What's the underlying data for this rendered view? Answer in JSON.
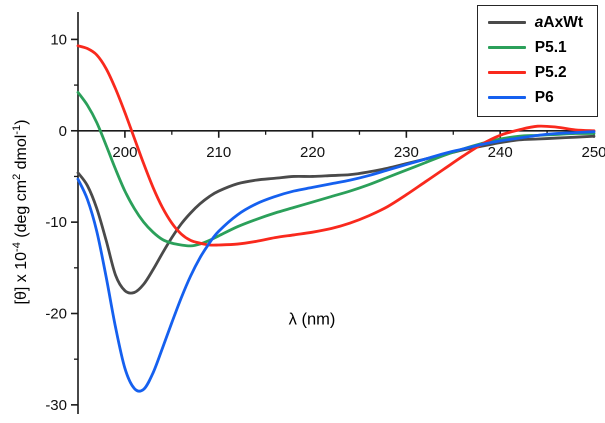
{
  "figure": {
    "ylabel_parts": [
      [
        "t",
        "[θ] x 10"
      ],
      [
        "s",
        "-4"
      ],
      [
        "t",
        " (deg cm"
      ],
      [
        "s",
        "2"
      ],
      [
        "t",
        " dmol"
      ],
      [
        "s",
        "-1"
      ],
      [
        "t",
        ")"
      ]
    ]
  },
  "chart_data": {
    "type": "line",
    "title": "",
    "xlabel": "λ (nm)",
    "ylabel": "[θ] x 10⁻⁴ (deg cm² dmol⁻¹)",
    "xlim": [
      195,
      250
    ],
    "ylim": [
      -31,
      13
    ],
    "x_ticks": [
      200,
      210,
      220,
      230,
      240,
      250
    ],
    "y_ticks": [
      10,
      0,
      -10,
      -20,
      -30
    ],
    "x_minor_ticks": [
      205,
      215,
      225,
      235,
      245
    ],
    "y_minor_ticks": [
      5,
      -5,
      -15,
      -25
    ],
    "grid": false,
    "legend_position": "top-right",
    "x": [
      195,
      196,
      197,
      198,
      199,
      200,
      201,
      202,
      203,
      204,
      205,
      206,
      207,
      208,
      209,
      210,
      212,
      214,
      216,
      218,
      220,
      222,
      224,
      226,
      228,
      230,
      232,
      234,
      236,
      238,
      240,
      242,
      244,
      246,
      248,
      250
    ],
    "series": [
      {
        "name": "aAxWt",
        "legend_prefix_italic": "a",
        "legend_label": "AxWt",
        "color": "#4a4a4a",
        "values": [
          -4.6,
          -6.0,
          -8.5,
          -12.0,
          -15.8,
          -17.5,
          -17.7,
          -16.8,
          -15.2,
          -13.4,
          -11.7,
          -10.2,
          -9.0,
          -8.0,
          -7.2,
          -6.6,
          -5.8,
          -5.4,
          -5.2,
          -5.0,
          -5.0,
          -4.9,
          -4.8,
          -4.5,
          -4.1,
          -3.6,
          -3.1,
          -2.6,
          -2.1,
          -1.7,
          -1.3,
          -1.0,
          -0.9,
          -0.8,
          -0.7,
          -0.6
        ]
      },
      {
        "name": "P5.1",
        "legend_prefix_italic": "",
        "legend_label": "P5.1",
        "color": "#2ba05a",
        "values": [
          4.2,
          2.8,
          0.9,
          -1.6,
          -4.2,
          -6.6,
          -8.5,
          -10.0,
          -11.1,
          -11.9,
          -12.3,
          -12.5,
          -12.6,
          -12.4,
          -12.0,
          -11.5,
          -10.5,
          -9.7,
          -9.0,
          -8.4,
          -7.8,
          -7.2,
          -6.6,
          -5.9,
          -5.1,
          -4.3,
          -3.5,
          -2.7,
          -2.0,
          -1.4,
          -0.9,
          -0.6,
          -0.5,
          -0.4,
          -0.3,
          -0.3
        ]
      },
      {
        "name": "P5.2",
        "legend_prefix_italic": "",
        "legend_label": "P5.2",
        "color": "#f9291d",
        "values": [
          9.3,
          9.0,
          8.3,
          6.8,
          4.6,
          2.0,
          -0.8,
          -3.6,
          -6.2,
          -8.4,
          -10.1,
          -11.3,
          -12.0,
          -12.3,
          -12.5,
          -12.5,
          -12.4,
          -12.1,
          -11.7,
          -11.4,
          -11.1,
          -10.7,
          -10.1,
          -9.3,
          -8.3,
          -7.0,
          -5.6,
          -4.2,
          -2.8,
          -1.5,
          -0.5,
          0.1,
          0.5,
          0.4,
          0.1,
          0.0
        ]
      },
      {
        "name": "P6",
        "legend_prefix_italic": "",
        "legend_label": "P6",
        "color": "#1560ef",
        "values": [
          -5.3,
          -7.5,
          -11.0,
          -16.0,
          -21.5,
          -26.0,
          -28.2,
          -28.3,
          -26.5,
          -23.8,
          -21.0,
          -18.3,
          -15.9,
          -13.9,
          -12.3,
          -11.0,
          -9.2,
          -8.0,
          -7.2,
          -6.6,
          -6.2,
          -5.8,
          -5.4,
          -4.9,
          -4.3,
          -3.7,
          -3.1,
          -2.5,
          -2.0,
          -1.5,
          -1.1,
          -0.8,
          -0.5,
          -0.3,
          -0.2,
          -0.1
        ]
      }
    ]
  }
}
